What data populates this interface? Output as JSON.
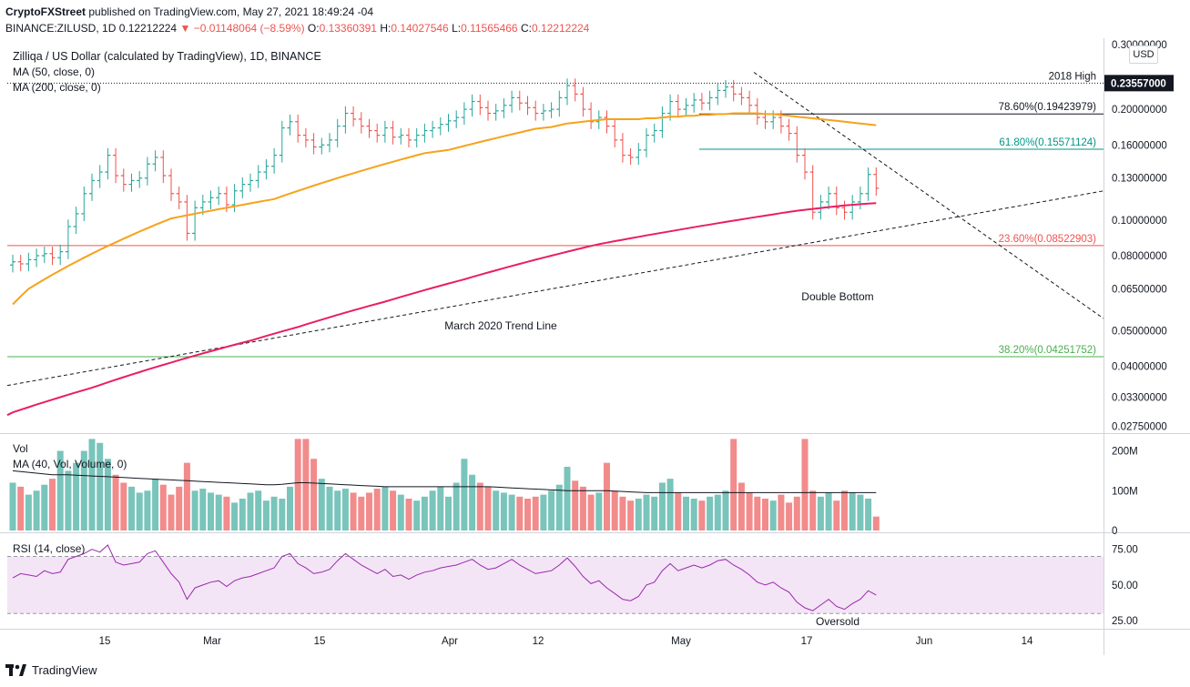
{
  "publish": {
    "author": "CryptoFXStreet",
    "text": " published on TradingView.com, May 27, 2021 18:49:24 -04"
  },
  "ohlc": {
    "symbol": "BINANCE:ZILUSD, 1D",
    "last": "0.12212224",
    "change": "−0.01148064 (−8.59%)",
    "o_label": "O:",
    "o": "0.13360391",
    "h_label": "H:",
    "h": "0.14027546",
    "l_label": "L:",
    "l": "0.11565466",
    "c_label": "C:",
    "c": "0.12212224"
  },
  "legend": {
    "title": "Zilliqa / US Dollar (calculated by TradingView), 1D, BINANCE",
    "ma50": "MA (50, close, 0)",
    "ma200": "MA (200, close, 0)"
  },
  "vol_legend": {
    "vol": "Vol",
    "ma": "MA (40, Vol, Volume, 0)"
  },
  "rsi_legend": "RSI (14, close)",
  "footer": {
    "brand": "TradingView"
  },
  "currency": "USD",
  "colors": {
    "up": "#26a69a",
    "down": "#ef5350",
    "upvol": "#79c4bb",
    "downvol": "#f28b8b",
    "ma50": "#f7a21b",
    "ma200": "#e91e63",
    "rsi": "#9c27b0",
    "rsiband": "#f3e5f5",
    "fib236": "#ef5350",
    "fib382": "#4caf50",
    "fib618": "#009688",
    "fib786": "#131722"
  },
  "chart_data": {
    "type": "candlestick",
    "title": "Zilliqa / US Dollar (calculated by TradingView), 1D, BINANCE",
    "x_ticks": [
      "15",
      "Mar",
      "15",
      "Apr",
      "12",
      "May",
      "17",
      "Jun",
      "14"
    ],
    "price_scale": "log",
    "price_axis_labels": [
      "0.30000000",
      "0.23557000",
      "0.20000000",
      "0.16000000",
      "0.13000000",
      "0.10000000",
      "0.08000000",
      "0.06500000",
      "0.05000000",
      "0.04000000",
      "0.03300000",
      "0.02750000"
    ],
    "last_price_badge": "0.23557000",
    "price_levels": [
      {
        "label": "2018 High",
        "value": 0.23557,
        "style": "dotted"
      },
      {
        "label": "78.60%(0.19423979)",
        "value": 0.19423979,
        "style": "solid"
      },
      {
        "label": "61.80%(0.15571124)",
        "value": 0.15571124,
        "style": "solid"
      },
      {
        "label": "23.60%(0.08522903)",
        "value": 0.08522903,
        "style": "solid"
      },
      {
        "label": "38.20%(0.04251752)",
        "value": 0.04251752,
        "style": "solid"
      }
    ],
    "annotations": [
      "Double Bottom",
      "March 2020 Trend Line",
      "Oversold"
    ],
    "close": [
      0.077,
      0.076,
      0.078,
      0.08,
      0.081,
      0.079,
      0.082,
      0.096,
      0.104,
      0.118,
      0.128,
      0.135,
      0.15,
      0.132,
      0.125,
      0.128,
      0.13,
      0.142,
      0.148,
      0.132,
      0.118,
      0.112,
      0.092,
      0.108,
      0.112,
      0.115,
      0.118,
      0.11,
      0.12,
      0.125,
      0.128,
      0.135,
      0.14,
      0.15,
      0.178,
      0.185,
      0.17,
      0.165,
      0.158,
      0.16,
      0.165,
      0.18,
      0.195,
      0.188,
      0.18,
      0.175,
      0.17,
      0.178,
      0.168,
      0.17,
      0.165,
      0.17,
      0.175,
      0.178,
      0.182,
      0.186,
      0.19,
      0.2,
      0.21,
      0.202,
      0.195,
      0.198,
      0.205,
      0.215,
      0.208,
      0.202,
      0.195,
      0.198,
      0.2,
      0.215,
      0.232,
      0.22,
      0.2,
      0.185,
      0.19,
      0.18,
      0.165,
      0.15,
      0.148,
      0.155,
      0.17,
      0.175,
      0.195,
      0.21,
      0.2,
      0.205,
      0.212,
      0.208,
      0.215,
      0.225,
      0.23,
      0.22,
      0.215,
      0.205,
      0.19,
      0.185,
      0.19,
      0.18,
      0.172,
      0.15,
      0.135,
      0.105,
      0.112,
      0.118,
      0.108,
      0.105,
      0.112,
      0.118,
      0.133,
      0.122
    ],
    "volume_axis_labels": [
      "200M",
      "100M",
      "0"
    ],
    "volume": [
      120,
      110,
      90,
      100,
      115,
      130,
      200,
      150,
      170,
      200,
      230,
      220,
      180,
      140,
      120,
      110,
      95,
      100,
      130,
      115,
      90,
      110,
      170,
      100,
      105,
      95,
      90,
      85,
      70,
      80,
      95,
      100,
      75,
      85,
      80,
      110,
      230,
      230,
      180,
      130,
      110,
      100,
      105,
      95,
      85,
      95,
      105,
      110,
      100,
      90,
      80,
      75,
      85,
      100,
      110,
      85,
      120,
      180,
      140,
      120,
      110,
      100,
      95,
      90,
      85,
      80,
      85,
      90,
      100,
      115,
      160,
      125,
      110,
      90,
      95,
      170,
      100,
      85,
      75,
      80,
      90,
      85,
      120,
      130,
      95,
      85,
      80,
      75,
      85,
      90,
      100,
      230,
      120,
      95,
      85,
      80,
      75,
      90,
      70,
      85,
      230,
      100,
      85,
      95,
      75,
      100,
      95,
      90,
      80,
      35
    ],
    "rsi_axis_labels": [
      "75.00",
      "50.00",
      "25.00"
    ],
    "rsi": [
      55,
      58,
      57,
      56,
      60,
      58,
      59,
      68,
      70,
      72,
      75,
      73,
      78,
      66,
      64,
      65,
      66,
      72,
      74,
      66,
      58,
      52,
      40,
      48,
      50,
      52,
      53,
      49,
      53,
      55,
      56,
      58,
      60,
      62,
      70,
      72,
      65,
      62,
      58,
      59,
      61,
      67,
      72,
      68,
      64,
      61,
      58,
      61,
      56,
      57,
      54,
      57,
      59,
      60,
      62,
      63,
      64,
      66,
      68,
      64,
      61,
      62,
      65,
      68,
      64,
      61,
      58,
      59,
      60,
      64,
      69,
      63,
      56,
      51,
      53,
      48,
      44,
      40,
      39,
      42,
      50,
      52,
      60,
      65,
      60,
      62,
      64,
      62,
      64,
      67,
      68,
      64,
      61,
      57,
      52,
      50,
      52,
      48,
      45,
      38,
      34,
      32,
      36,
      40,
      35,
      33,
      37,
      40,
      46,
      43
    ],
    "ma50": [
      0.059,
      0.062,
      0.065,
      0.067,
      0.069,
      0.071,
      0.073,
      0.075,
      0.077,
      0.079,
      0.081,
      0.083,
      0.085,
      0.087,
      0.089,
      0.091,
      0.093,
      0.095,
      0.097,
      0.099,
      0.101,
      0.102,
      0.103,
      0.104,
      0.105,
      0.106,
      0.107,
      0.108,
      0.109,
      0.11,
      0.111,
      0.112,
      0.113,
      0.114,
      0.116,
      0.118,
      0.12,
      0.122,
      0.124,
      0.126,
      0.128,
      0.13,
      0.132,
      0.134,
      0.136,
      0.138,
      0.14,
      0.142,
      0.144,
      0.146,
      0.148,
      0.15,
      0.152,
      0.153,
      0.154,
      0.155,
      0.157,
      0.159,
      0.161,
      0.163,
      0.165,
      0.167,
      0.169,
      0.171,
      0.173,
      0.175,
      0.177,
      0.178,
      0.179,
      0.181,
      0.183,
      0.184,
      0.185,
      0.186,
      0.187,
      0.188,
      0.188,
      0.188,
      0.188,
      0.188,
      0.189,
      0.189,
      0.19,
      0.191,
      0.191,
      0.192,
      0.192,
      0.193,
      0.193,
      0.194,
      0.194,
      0.195,
      0.195,
      0.195,
      0.195,
      0.194,
      0.194,
      0.193,
      0.192,
      0.191,
      0.19,
      0.189,
      0.188,
      0.187,
      0.186,
      0.185,
      0.184,
      0.183,
      0.182,
      0.181
    ],
    "ma200": [
      0.03,
      0.0305,
      0.031,
      0.0315,
      0.032,
      0.0325,
      0.033,
      0.0335,
      0.034,
      0.0345,
      0.035,
      0.0356,
      0.0362,
      0.0368,
      0.0374,
      0.038,
      0.0386,
      0.0392,
      0.0398,
      0.0404,
      0.041,
      0.0416,
      0.0422,
      0.0428,
      0.0434,
      0.044,
      0.0446,
      0.0452,
      0.0458,
      0.0464,
      0.047,
      0.0477,
      0.0484,
      0.0491,
      0.0498,
      0.0505,
      0.0512,
      0.052,
      0.0528,
      0.0536,
      0.0544,
      0.0552,
      0.056,
      0.0568,
      0.0576,
      0.0584,
      0.0592,
      0.06,
      0.0609,
      0.0618,
      0.0627,
      0.0636,
      0.0645,
      0.0654,
      0.0663,
      0.0672,
      0.0681,
      0.069,
      0.07,
      0.071,
      0.072,
      0.073,
      0.074,
      0.075,
      0.076,
      0.077,
      0.078,
      0.079,
      0.08,
      0.081,
      0.082,
      0.083,
      0.084,
      0.085,
      0.086,
      0.0868,
      0.0876,
      0.0884,
      0.0892,
      0.09,
      0.0908,
      0.0916,
      0.0924,
      0.0932,
      0.094,
      0.0948,
      0.0956,
      0.0964,
      0.0972,
      0.098,
      0.0988,
      0.0996,
      0.1004,
      0.1012,
      0.102,
      0.1028,
      0.1036,
      0.1044,
      0.1052,
      0.106,
      0.1066,
      0.1072,
      0.1078,
      0.1084,
      0.109,
      0.1096,
      0.11,
      0.1104,
      0.1108,
      0.1112
    ],
    "vol_ma": [
      150,
      148,
      146,
      144,
      142,
      140,
      140,
      140,
      139,
      138,
      137,
      136,
      135,
      134,
      133,
      132,
      131,
      130,
      129,
      128,
      127,
      126,
      125,
      124,
      123,
      122,
      121,
      120,
      119,
      118,
      117,
      116,
      115,
      115,
      116,
      118,
      120,
      120,
      119,
      118,
      117,
      116,
      115,
      114,
      113,
      112,
      111,
      110,
      110,
      110,
      110,
      110,
      110,
      110,
      110,
      110,
      110,
      110,
      110,
      110,
      110,
      109,
      108,
      107,
      106,
      105,
      104,
      103,
      102,
      101,
      100,
      100,
      100,
      100,
      100,
      100,
      99,
      98,
      97,
      96,
      95,
      95,
      95,
      95,
      95,
      95,
      95,
      95,
      95,
      95,
      95,
      95,
      95,
      95,
      95,
      95,
      95,
      95,
      95,
      95,
      95,
      95,
      95,
      95,
      95,
      95,
      95,
      95,
      95,
      95
    ]
  }
}
